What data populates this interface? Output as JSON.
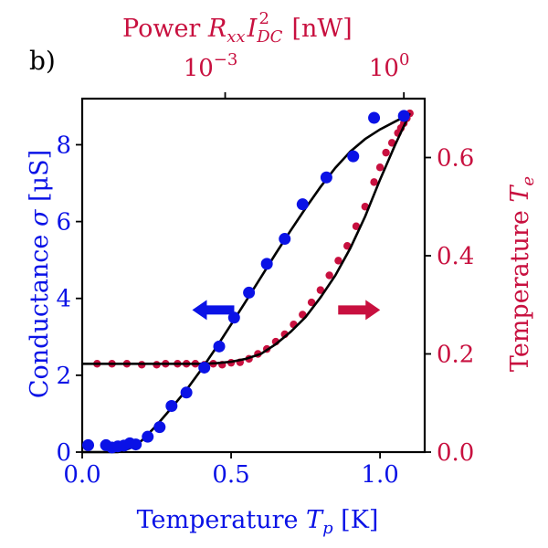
{
  "panel_label": "b)",
  "colors": {
    "blue": "#0a12e6",
    "red": "#c8103f",
    "black": "#000000"
  },
  "chart_data": {
    "type": "scatter",
    "title": "",
    "xlabel": "Temperature T_p [K]",
    "xlabel_main": "Temperature ",
    "xlabel_var": "T",
    "xlabel_sub": "p",
    "xlabel_unit": " [K]",
    "xlim": [
      0.0,
      1.15
    ],
    "x_ticks": [
      0.0,
      0.5,
      1.0
    ],
    "x_tick_labels": [
      "0.0",
      "0.5",
      "1.0"
    ],
    "left_axis": {
      "label": "Conductance σ [μS]",
      "label_main": "Conductance ",
      "label_var": "σ",
      "label_unit": " [μS]",
      "ylim": [
        0,
        9.2
      ],
      "ticks": [
        0,
        2,
        4,
        6,
        8
      ],
      "tick_labels": [
        "0",
        "2",
        "4",
        "6",
        "8"
      ]
    },
    "right_axis": {
      "label": "Temperature T_e [K]",
      "label_main": "Temperature ",
      "label_var": "T",
      "label_sub": "e",
      "ylim": [
        0.0,
        0.72
      ],
      "ticks": [
        0.0,
        0.2,
        0.4,
        0.6
      ],
      "tick_labels": [
        "0.0",
        "0.2",
        "0.4",
        "0.6"
      ]
    },
    "top_axis": {
      "label": "Power R_xx I_DC^2 [nW]",
      "label_main": "Power ",
      "label_unit": " [nW]",
      "ticks": [
        0.48,
        1.08
      ],
      "tick_labels": [
        "10^-3",
        "10^0"
      ],
      "tick_base": "10",
      "tick_exponents": [
        "−3",
        "0"
      ]
    },
    "series": [
      {
        "name": "Conductance σ (data)",
        "axis": "left",
        "color": "#0a12e6",
        "x": [
          0.02,
          0.08,
          0.1,
          0.12,
          0.14,
          0.16,
          0.18,
          0.22,
          0.26,
          0.3,
          0.35,
          0.41,
          0.46,
          0.51,
          0.56,
          0.62,
          0.68,
          0.74,
          0.82,
          0.91,
          0.98,
          1.08
        ],
        "y": [
          0.18,
          0.18,
          0.12,
          0.15,
          0.17,
          0.23,
          0.2,
          0.4,
          0.65,
          1.2,
          1.55,
          2.2,
          2.75,
          3.5,
          4.15,
          4.9,
          5.55,
          6.45,
          7.15,
          7.7,
          8.7,
          8.75
        ]
      },
      {
        "name": "Conductance fit",
        "axis": "left",
        "color": "#000000",
        "x": [
          0.0,
          0.12,
          0.16,
          0.2,
          0.25,
          0.3,
          0.35,
          0.4,
          0.45,
          0.5,
          0.55,
          0.6,
          0.65,
          0.7,
          0.75,
          0.8,
          0.85,
          0.9,
          0.95,
          1.0,
          1.05,
          1.1
        ],
        "y": [
          0.0,
          0.0,
          0.1,
          0.3,
          0.7,
          1.15,
          1.62,
          2.15,
          2.72,
          3.32,
          3.93,
          4.55,
          5.17,
          5.77,
          6.35,
          6.9,
          7.4,
          7.82,
          8.15,
          8.4,
          8.6,
          8.8
        ]
      },
      {
        "name": "Electron temperature T_e (data)",
        "axis": "right",
        "color": "#c8103f",
        "x": [
          0.05,
          0.1,
          0.15,
          0.2,
          0.25,
          0.28,
          0.32,
          0.35,
          0.38,
          0.41,
          0.44,
          0.47,
          0.5,
          0.53,
          0.56,
          0.59,
          0.62,
          0.65,
          0.68,
          0.71,
          0.74,
          0.77,
          0.8,
          0.83,
          0.86,
          0.89,
          0.92,
          0.95,
          0.98,
          1.0,
          1.02,
          1.04,
          1.06,
          1.07,
          1.08,
          1.09,
          1.1
        ],
        "y": [
          0.18,
          0.18,
          0.18,
          0.178,
          0.178,
          0.18,
          0.18,
          0.18,
          0.18,
          0.178,
          0.18,
          0.178,
          0.182,
          0.183,
          0.19,
          0.2,
          0.21,
          0.225,
          0.24,
          0.26,
          0.28,
          0.305,
          0.33,
          0.36,
          0.39,
          0.42,
          0.46,
          0.5,
          0.55,
          0.58,
          0.61,
          0.63,
          0.65,
          0.66,
          0.67,
          0.68,
          0.69
        ]
      },
      {
        "name": "Electron temperature fit",
        "axis": "right",
        "color": "#000000",
        "x": [
          0.0,
          0.4,
          0.45,
          0.5,
          0.55,
          0.6,
          0.65,
          0.7,
          0.75,
          0.8,
          0.85,
          0.9,
          0.95,
          1.0,
          1.05,
          1.1
        ],
        "y": [
          0.18,
          0.18,
          0.181,
          0.184,
          0.19,
          0.2,
          0.22,
          0.245,
          0.275,
          0.315,
          0.36,
          0.415,
          0.48,
          0.555,
          0.625,
          0.69
        ]
      }
    ],
    "annotations": [
      {
        "type": "arrow",
        "direction": "left",
        "color": "#0a12e6",
        "x": 0.44,
        "y_left": 3.7,
        "meaning": "points to left axis"
      },
      {
        "type": "arrow",
        "direction": "right",
        "color": "#c8103f",
        "x": 0.93,
        "y_left": 3.7,
        "meaning": "points to right axis"
      }
    ]
  }
}
